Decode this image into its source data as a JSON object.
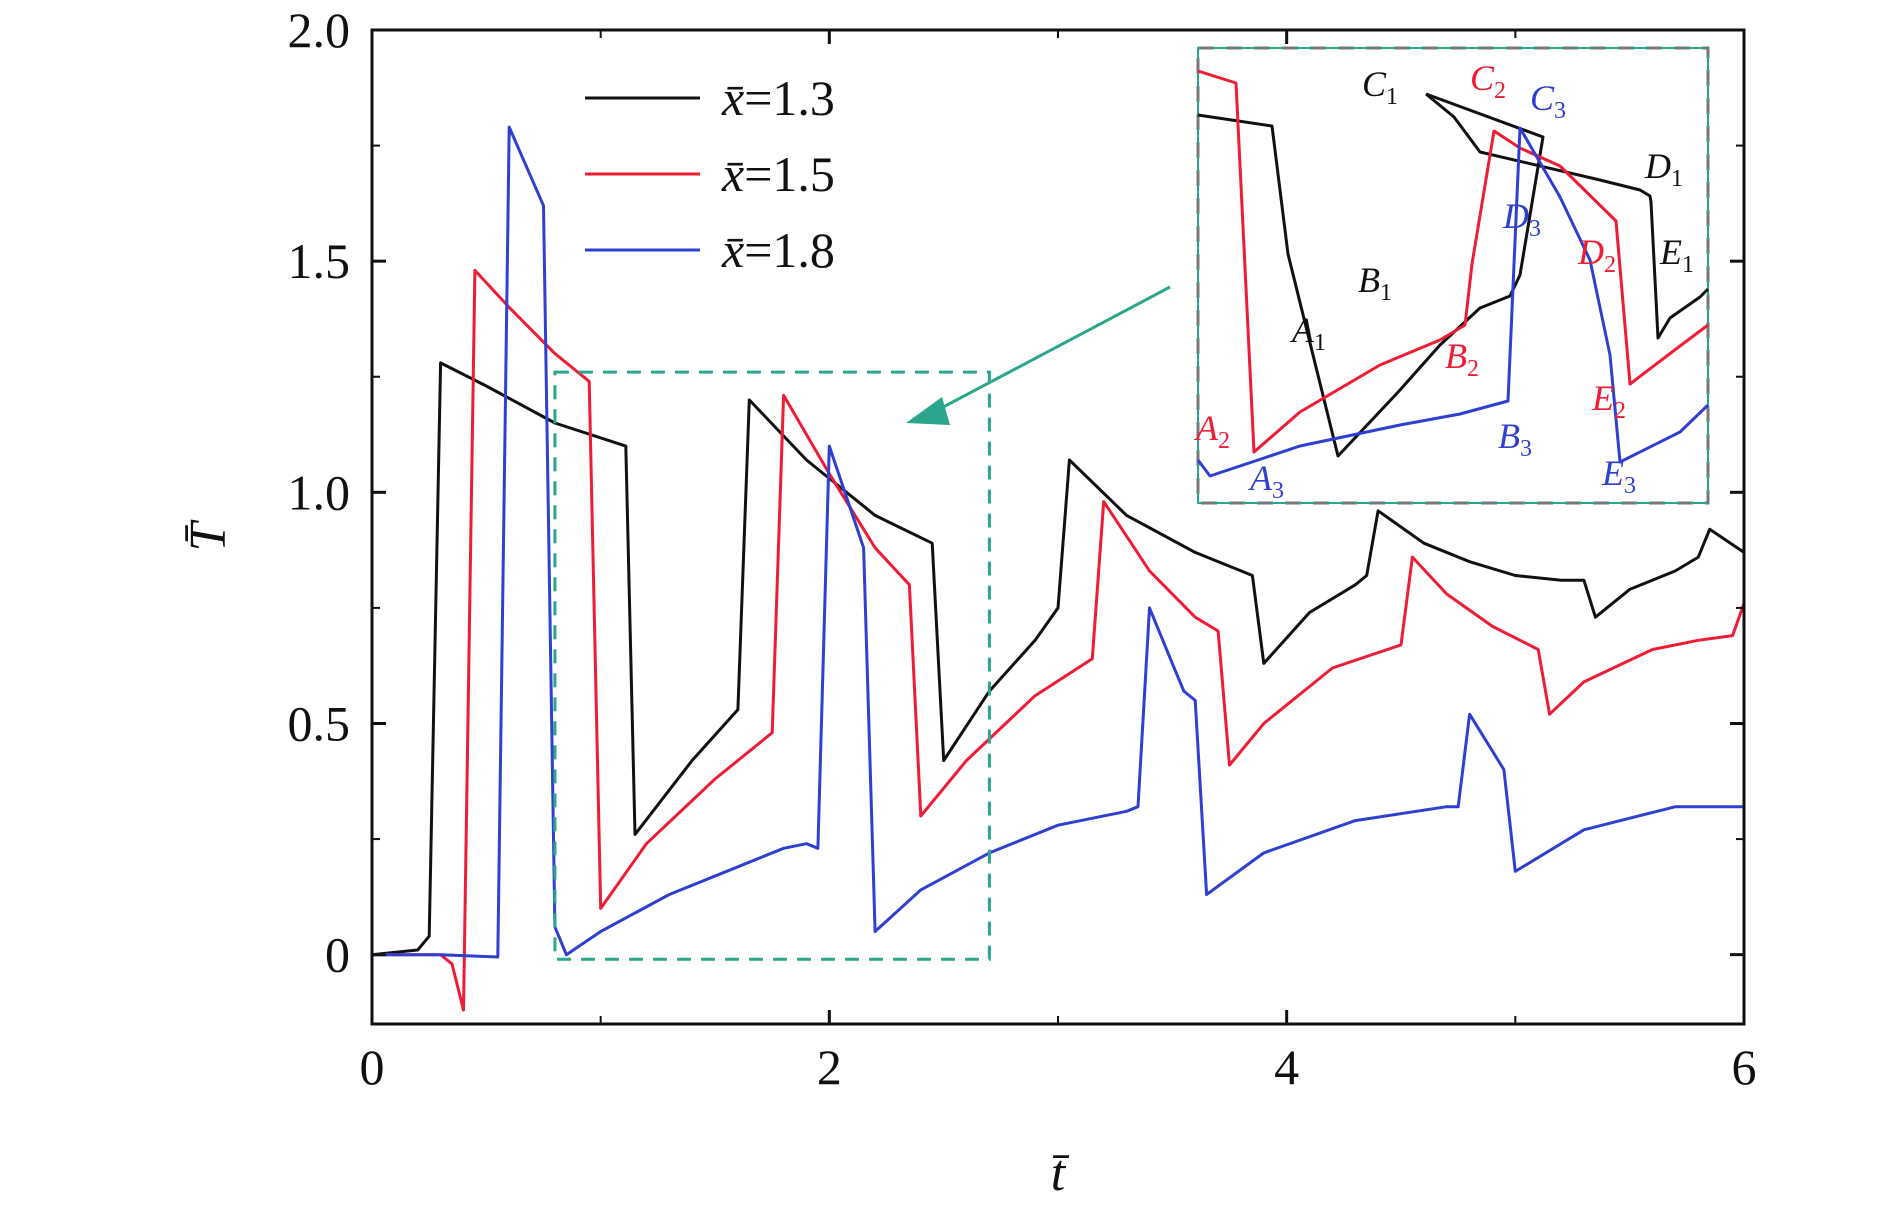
{
  "chart_data": {
    "type": "line",
    "title": "",
    "xlabel": "t̄",
    "ylabel": "T̄",
    "xlim": [
      0,
      6
    ],
    "ylim": [
      -0.15,
      2.0
    ],
    "xticks": [
      "0",
      "2",
      "4",
      "6"
    ],
    "yticks": [
      "0",
      "0.5",
      "1.0",
      "1.5",
      "2.0"
    ],
    "grid": false,
    "legend_position": "top-left",
    "series": [
      {
        "name": "x̄=1.3",
        "legend": {
          "x": "x̄",
          "eq": "=1.3"
        },
        "color": "#111111",
        "points": [
          [
            0,
            0
          ],
          [
            0.2,
            0.01
          ],
          [
            0.25,
            0.04
          ],
          [
            0.3,
            1.28
          ],
          [
            0.5,
            1.23
          ],
          [
            0.8,
            1.15
          ],
          [
            1.11,
            1.1
          ],
          [
            1.15,
            0.26
          ],
          [
            1.4,
            0.42
          ],
          [
            1.6,
            0.53
          ],
          [
            1.65,
            1.2
          ],
          [
            1.9,
            1.07
          ],
          [
            2.2,
            0.95
          ],
          [
            2.45,
            0.89
          ],
          [
            2.5,
            0.42
          ],
          [
            2.7,
            0.57
          ],
          [
            2.9,
            0.68
          ],
          [
            3.0,
            0.75
          ],
          [
            3.05,
            1.07
          ],
          [
            3.3,
            0.95
          ],
          [
            3.6,
            0.87
          ],
          [
            3.85,
            0.82
          ],
          [
            3.9,
            0.63
          ],
          [
            4.1,
            0.74
          ],
          [
            4.3,
            0.8
          ],
          [
            4.35,
            0.82
          ],
          [
            4.4,
            0.96
          ],
          [
            4.6,
            0.89
          ],
          [
            4.8,
            0.85
          ],
          [
            5.0,
            0.82
          ],
          [
            5.2,
            0.81
          ],
          [
            5.3,
            0.81
          ],
          [
            5.35,
            0.73
          ],
          [
            5.5,
            0.79
          ],
          [
            5.7,
            0.83
          ],
          [
            5.8,
            0.86
          ],
          [
            5.85,
            0.92
          ],
          [
            6.0,
            0.87
          ]
        ]
      },
      {
        "name": "x̄=1.5",
        "legend": {
          "x": "x̄",
          "eq": "=1.5"
        },
        "color": "#ee1c34",
        "points": [
          [
            0,
            0
          ],
          [
            0.3,
            0.0
          ],
          [
            0.35,
            -0.02
          ],
          [
            0.4,
            -0.12
          ],
          [
            0.45,
            1.48
          ],
          [
            0.6,
            1.4
          ],
          [
            0.8,
            1.3
          ],
          [
            0.95,
            1.24
          ],
          [
            1.0,
            0.1
          ],
          [
            1.2,
            0.24
          ],
          [
            1.5,
            0.38
          ],
          [
            1.75,
            0.48
          ],
          [
            1.8,
            1.21
          ],
          [
            2.0,
            1.04
          ],
          [
            2.2,
            0.88
          ],
          [
            2.35,
            0.8
          ],
          [
            2.4,
            0.3
          ],
          [
            2.6,
            0.42
          ],
          [
            2.9,
            0.56
          ],
          [
            3.15,
            0.64
          ],
          [
            3.2,
            0.98
          ],
          [
            3.4,
            0.83
          ],
          [
            3.6,
            0.73
          ],
          [
            3.7,
            0.7
          ],
          [
            3.75,
            0.41
          ],
          [
            3.9,
            0.5
          ],
          [
            4.2,
            0.62
          ],
          [
            4.5,
            0.67
          ],
          [
            4.55,
            0.86
          ],
          [
            4.7,
            0.78
          ],
          [
            4.9,
            0.71
          ],
          [
            5.1,
            0.66
          ],
          [
            5.15,
            0.52
          ],
          [
            5.3,
            0.59
          ],
          [
            5.6,
            0.66
          ],
          [
            5.8,
            0.68
          ],
          [
            5.95,
            0.69
          ],
          [
            6.0,
            0.76
          ]
        ]
      },
      {
        "name": "x̄=1.8",
        "legend": {
          "x": "x̄",
          "eq": "=1.8"
        },
        "color": "#2f3fd0",
        "points": [
          [
            0,
            0
          ],
          [
            0.3,
            0.0
          ],
          [
            0.55,
            -0.005
          ],
          [
            0.6,
            1.79
          ],
          [
            0.75,
            1.62
          ],
          [
            0.8,
            0.06
          ],
          [
            0.85,
            0.0
          ],
          [
            1.0,
            0.05
          ],
          [
            1.3,
            0.13
          ],
          [
            1.6,
            0.19
          ],
          [
            1.8,
            0.23
          ],
          [
            1.9,
            0.24
          ],
          [
            1.95,
            0.23
          ],
          [
            2.0,
            1.1
          ],
          [
            2.15,
            0.88
          ],
          [
            2.2,
            0.05
          ],
          [
            2.4,
            0.14
          ],
          [
            2.7,
            0.22
          ],
          [
            3.0,
            0.28
          ],
          [
            3.3,
            0.31
          ],
          [
            3.35,
            0.32
          ],
          [
            3.4,
            0.75
          ],
          [
            3.5,
            0.63
          ],
          [
            3.55,
            0.57
          ],
          [
            3.6,
            0.55
          ],
          [
            3.65,
            0.13
          ],
          [
            3.9,
            0.22
          ],
          [
            4.3,
            0.29
          ],
          [
            4.7,
            0.32
          ],
          [
            4.75,
            0.32
          ],
          [
            4.8,
            0.52
          ],
          [
            4.9,
            0.44
          ],
          [
            4.95,
            0.4
          ],
          [
            5.0,
            0.18
          ],
          [
            5.3,
            0.27
          ],
          [
            5.7,
            0.32
          ],
          [
            6.0,
            0.32
          ]
        ]
      }
    ],
    "zoom_box": {
      "xlim": [
        0.8,
        2.7
      ],
      "ylim": [
        -0.01,
        1.26
      ],
      "color": "#2ca58d"
    },
    "inset": {
      "description_labels": true,
      "labels": [
        {
          "base": "A",
          "sub": "1",
          "color": "#111111"
        },
        {
          "base": "B",
          "sub": "1",
          "color": "#111111"
        },
        {
          "base": "C",
          "sub": "1",
          "color": "#111111"
        },
        {
          "base": "D",
          "sub": "1",
          "color": "#111111"
        },
        {
          "base": "E",
          "sub": "1",
          "color": "#111111"
        },
        {
          "base": "A",
          "sub": "2",
          "color": "#ee1c34"
        },
        {
          "base": "B",
          "sub": "2",
          "color": "#ee1c34"
        },
        {
          "base": "C",
          "sub": "2",
          "color": "#ee1c34"
        },
        {
          "base": "D",
          "sub": "2",
          "color": "#ee1c34"
        },
        {
          "base": "E",
          "sub": "2",
          "color": "#ee1c34"
        },
        {
          "base": "A",
          "sub": "3",
          "color": "#2f3fd0"
        },
        {
          "base": "B",
          "sub": "3",
          "color": "#2f3fd0"
        },
        {
          "base": "C",
          "sub": "3",
          "color": "#2f3fd0"
        },
        {
          "base": "D",
          "sub": "3",
          "color": "#2f3fd0"
        },
        {
          "base": "E",
          "sub": "3",
          "color": "#2f3fd0"
        }
      ]
    }
  }
}
